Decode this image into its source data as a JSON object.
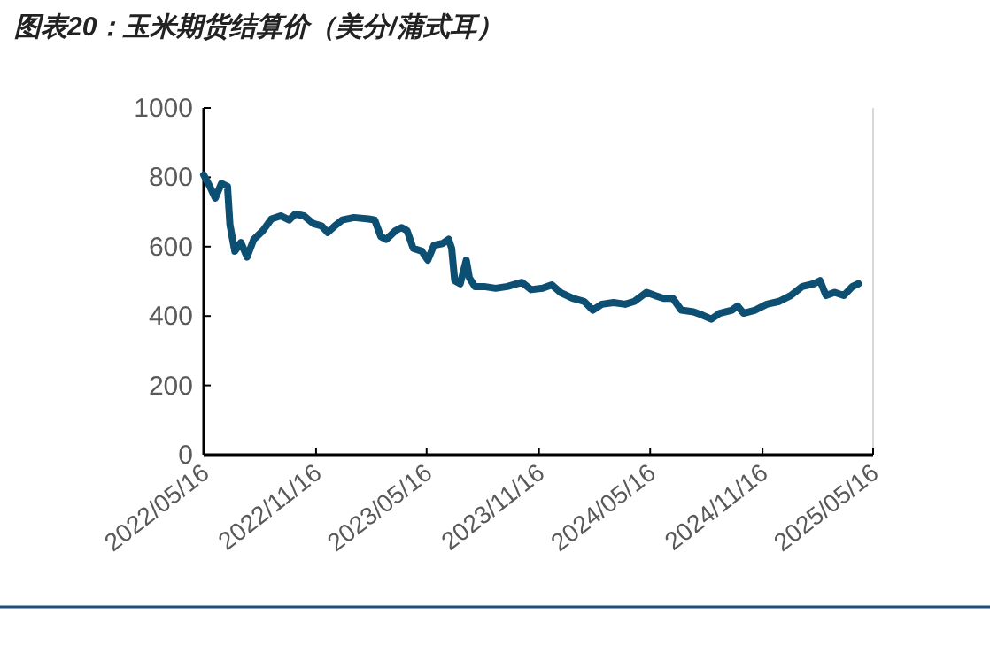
{
  "chart_data": {
    "type": "line",
    "title": "图表20：玉米期货结算价（美分/蒲式耳）",
    "x": [
      "2022-05-16",
      "2022-05-26",
      "2022-06-04",
      "2022-06-14",
      "2022-06-24",
      "2022-06-28",
      "2022-07-06",
      "2022-07-16",
      "2022-07-26",
      "2022-08-06",
      "2022-08-21",
      "2022-09-04",
      "2022-09-19",
      "2022-10-03",
      "2022-10-13",
      "2022-10-27",
      "2022-11-11",
      "2022-11-25",
      "2022-12-05",
      "2022-12-19",
      "2022-12-29",
      "2023-01-17",
      "2023-02-10",
      "2023-02-20",
      "2023-03-02",
      "2023-03-11",
      "2023-03-26",
      "2023-04-05",
      "2023-04-14",
      "2023-04-24",
      "2023-05-08",
      "2023-05-18",
      "2023-05-28",
      "2023-06-11",
      "2023-06-21",
      "2023-06-26",
      "2023-07-01",
      "2023-07-10",
      "2023-07-20",
      "2023-07-25",
      "2023-08-03",
      "2023-08-18",
      "2023-09-06",
      "2023-09-25",
      "2023-10-19",
      "2023-11-03",
      "2023-11-22",
      "2023-12-07",
      "2023-12-21",
      "2024-01-10",
      "2024-01-29",
      "2024-02-12",
      "2024-02-27",
      "2024-03-17",
      "2024-04-05",
      "2024-04-20",
      "2024-05-10",
      "2024-05-24",
      "2024-06-07",
      "2024-06-22",
      "2024-07-06",
      "2024-07-26",
      "2024-08-09",
      "2024-08-24",
      "2024-09-07",
      "2024-09-27",
      "2024-10-06",
      "2024-10-16",
      "2024-11-04",
      "2024-11-23",
      "2024-12-13",
      "2025-01-01",
      "2025-01-20",
      "2025-02-08",
      "2025-02-18",
      "2025-02-28",
      "2025-03-14",
      "2025-03-29",
      "2025-04-12",
      "2025-04-22"
    ],
    "series": [
      {
        "color": "#0d4f73",
        "values": [
          807,
          774,
          740,
          782,
          774,
          663,
          587,
          612,
          570,
          621,
          646,
          680,
          689,
          677,
          694,
          689,
          667,
          660,
          641,
          663,
          677,
          684,
          680,
          677,
          629,
          621,
          646,
          655,
          646,
          595,
          587,
          561,
          604,
          609,
          621,
          595,
          502,
          493,
          561,
          510,
          485,
          485,
          480,
          485,
          497,
          476,
          480,
          490,
          468,
          451,
          442,
          417,
          434,
          439,
          434,
          442,
          468,
          459,
          451,
          451,
          417,
          412,
          403,
          391,
          408,
          417,
          429,
          408,
          417,
          434,
          442,
          459,
          485,
          493,
          502,
          459,
          468,
          459,
          485,
          493
        ]
      }
    ],
    "xlim": [
      "2022-05-16",
      "2025-05-16"
    ],
    "xticks": [
      {
        "value": "2022-05-16",
        "label": "2022/05/16"
      },
      {
        "value": "2022-11-16",
        "label": "2022/11/16"
      },
      {
        "value": "2023-05-16",
        "label": "2023/05/16"
      },
      {
        "value": "2023-11-16",
        "label": "2023/11/16"
      },
      {
        "value": "2024-05-16",
        "label": "2024/05/16"
      },
      {
        "value": "2024-11-16",
        "label": "2024/11/16"
      },
      {
        "value": "2025-05-16",
        "label": "2025/05/16"
      }
    ],
    "ylim": [
      0,
      1000
    ],
    "yticks": [
      0,
      200,
      400,
      600,
      800,
      1000
    ],
    "grid": false,
    "marker": "none",
    "line_style": "solid"
  }
}
